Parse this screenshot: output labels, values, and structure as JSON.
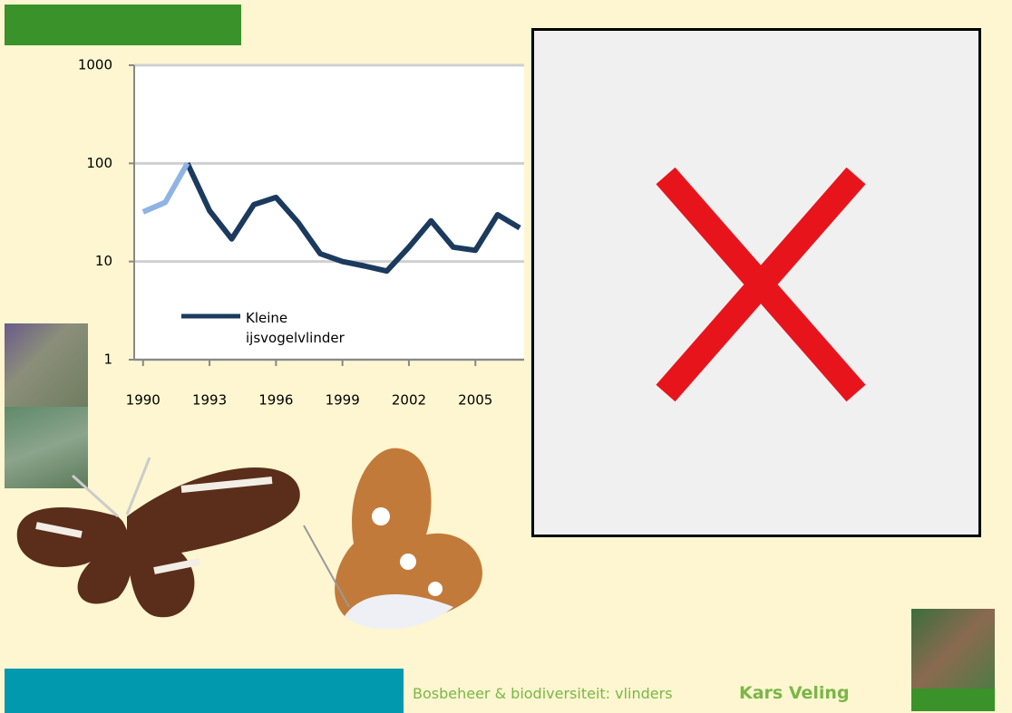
{
  "chart_data": {
    "type": "line",
    "x": [
      1990,
      1991,
      1992,
      1993,
      1994,
      1995,
      1996,
      1997,
      1998,
      1999,
      2000,
      2001,
      2002,
      2003,
      2004,
      2005,
      2006,
      2007
    ],
    "series": [
      {
        "name": "Kleine ijsvogelvlinder",
        "color": "#1b3a5e",
        "values": [
          null,
          null,
          100,
          33,
          17,
          38,
          45,
          25,
          12,
          10,
          9,
          8,
          14,
          26,
          14,
          13,
          30,
          22
        ]
      },
      {
        "color": "#8fb4e3",
        "values": [
          32,
          40,
          100,
          null,
          null,
          null,
          null,
          null,
          null,
          null,
          null,
          null,
          null,
          null,
          null,
          null,
          null,
          null
        ]
      }
    ],
    "xlim": [
      1989.6,
      2007.2
    ],
    "xticks": [
      1990,
      1993,
      1996,
      1999,
      2002,
      2005
    ],
    "ylim": [
      1,
      1000
    ],
    "yticks": [
      1,
      10,
      100,
      1000
    ],
    "log_y": true,
    "grid": true,
    "legend": "lower left"
  },
  "footer": {
    "subject": "Bosbeheer & biodiversiteit: vlinders",
    "author": "Kars Veling"
  }
}
